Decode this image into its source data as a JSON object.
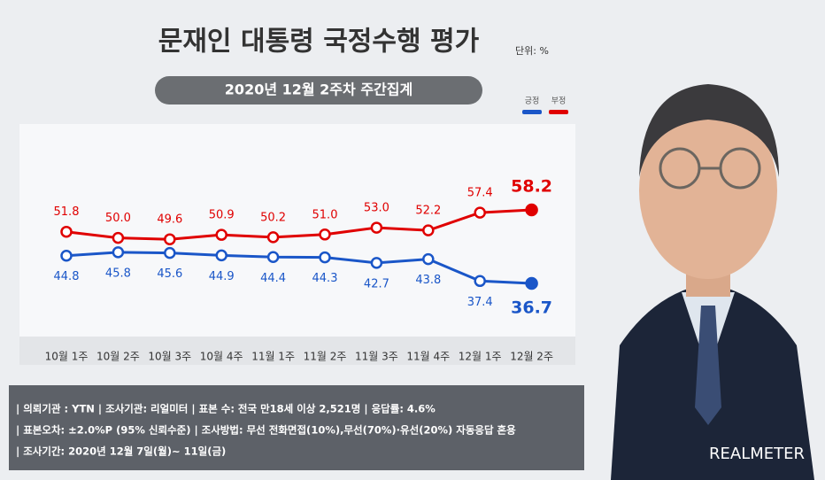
{
  "chart_data": {
    "type": "line",
    "title": "문재인 대통령 국정수행 평가",
    "unit": "단위: %",
    "subtitle": "2020년 12월 2주차 주간집계",
    "categories": [
      "10월 1주",
      "10월 2주",
      "10월 3주",
      "10월 4주",
      "11월 1주",
      "11월 2주",
      "11월 3주",
      "11월 4주",
      "12월 1주",
      "12월 2주"
    ],
    "series": [
      {
        "name": "긍정",
        "color": "#1a56c8",
        "values": [
          44.8,
          45.8,
          45.6,
          44.9,
          44.4,
          44.3,
          42.7,
          43.8,
          37.4,
          36.7
        ],
        "value_labels": [
          "44.8",
          "45.8",
          "45.6",
          "44.9",
          "44.4",
          "44.3",
          "42.7",
          "43.8",
          "37.4",
          "36.7"
        ]
      },
      {
        "name": "부정",
        "color": "#e00000",
        "values": [
          51.8,
          50.0,
          49.6,
          50.9,
          50.2,
          51.0,
          53.0,
          52.2,
          57.4,
          58.2
        ],
        "value_labels": [
          "51.8",
          "50.0",
          "49.6",
          "50.9",
          "50.2",
          "51.0",
          "53.0",
          "52.2",
          "57.4",
          "58.2"
        ]
      }
    ],
    "notes": [
      "| 의뢰기관 : YTN   |   조사기관: 리얼미터  |   표본 수: 전국 만18세 이상 2,521명   |   응답률: 4.6%",
      "| 표본오차: ±2.0%P (95% 신뢰수준)  |   조사방법: 무선 전화면접(10%),무선(70%)·유선(20%) 자동응답 혼용",
      "| 조사기간: 2020년 12월 7일(월)~ 11일(금)"
    ],
    "brand": "REALMETER"
  }
}
